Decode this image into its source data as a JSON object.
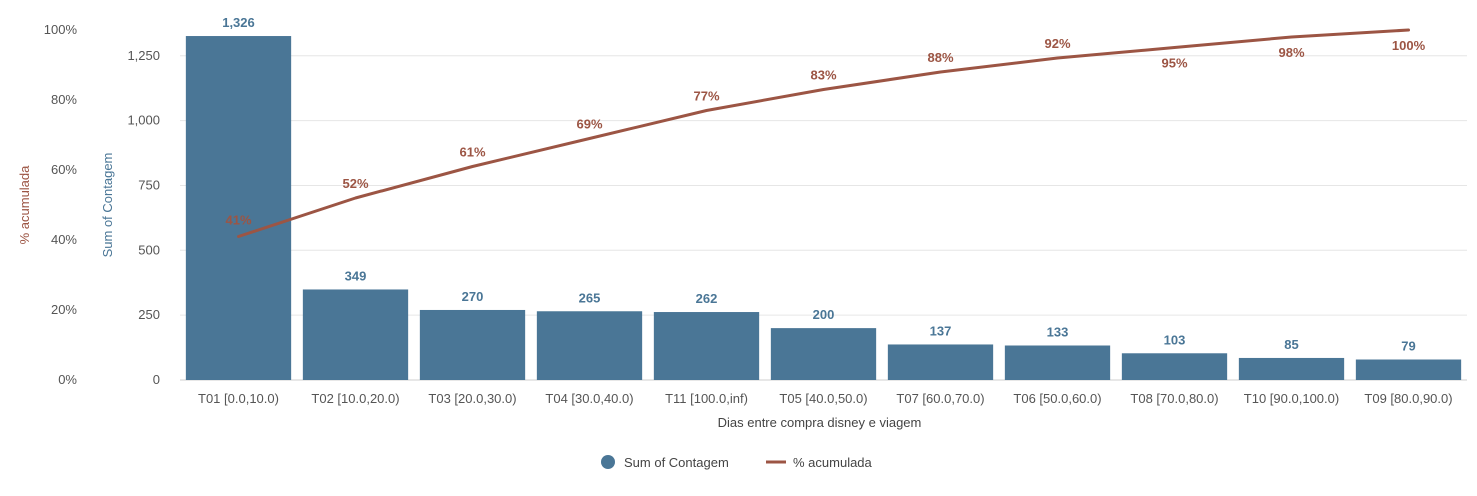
{
  "chart_data": {
    "type": "bar",
    "title": "",
    "xlabel": "Dias entre compra disney e viagem",
    "ylabel": "Sum of Contagem",
    "y2label": "% acumulada",
    "ylim": [
      0,
      1330
    ],
    "y2lim": [
      0,
      100
    ],
    "y_ticks": [
      0,
      250,
      500,
      750,
      1000,
      1250
    ],
    "y_tick_labels": [
      "0",
      "250",
      "500",
      "750",
      "1,000",
      "1,250"
    ],
    "y2_ticks": [
      0,
      20,
      40,
      60,
      80,
      100
    ],
    "y2_tick_labels": [
      "0%",
      "20%",
      "40%",
      "60%",
      "80%",
      "100%"
    ],
    "categories": [
      "T01 [0.0,10.0)",
      "T02 [10.0,20.0)",
      "T03 [20.0,30.0)",
      "T04 [30.0,40.0)",
      "T11 [100.0,inf)",
      "T05 [40.0,50.0)",
      "T07 [60.0,70.0)",
      "T06 [50.0,60.0)",
      "T08 [70.0,80.0)",
      "T10 [90.0,100.0)",
      "T09 [80.0,90.0)"
    ],
    "series": [
      {
        "name": "Sum of Contagem",
        "type": "bar",
        "axis": "left",
        "color": "#4a7696",
        "values": [
          1326,
          349,
          270,
          265,
          262,
          200,
          137,
          133,
          103,
          85,
          79
        ],
        "labels": [
          "1,326",
          "349",
          "270",
          "265",
          "262",
          "200",
          "137",
          "133",
          "103",
          "85",
          "79"
        ]
      },
      {
        "name": "% acumulada",
        "type": "line",
        "axis": "right",
        "color": "#9c5544",
        "values": [
          41,
          52,
          61,
          69,
          77,
          83,
          88,
          92,
          95,
          98,
          100
        ],
        "labels": [
          "41%",
          "52%",
          "61%",
          "69%",
          "77%",
          "83%",
          "88%",
          "92%",
          "95%",
          "98%",
          "100%"
        ]
      }
    ],
    "grid": true,
    "legend_position": "bottom-center",
    "colors": {
      "bar": "#4a7696",
      "line": "#9c5544",
      "grid": "#e6e6e6",
      "tick_text": "#555555"
    }
  }
}
